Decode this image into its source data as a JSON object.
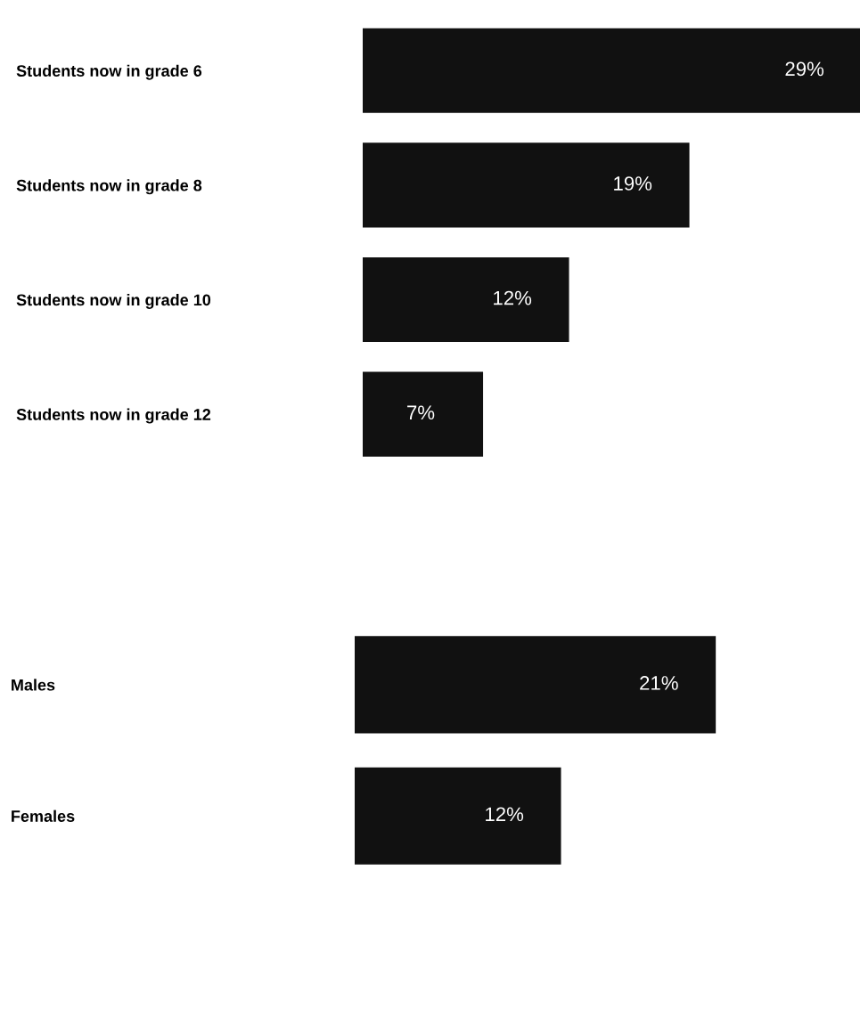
{
  "chart_data": [
    {
      "type": "bar",
      "orientation": "horizontal",
      "categories": [
        "Students now in grade 6",
        "Students now in grade 8",
        "Students now in grade 10",
        "Students now in grade 12"
      ],
      "values": [
        29,
        19,
        12,
        7
      ],
      "color": "#111111",
      "data_labels": true,
      "value_labels": [
        "29%",
        "19%",
        "12%",
        "7%"
      ],
      "grid": false,
      "legend": false,
      "tick_labels": "y"
    },
    {
      "type": "bar",
      "orientation": "horizontal",
      "categories": [
        "Males",
        "Females"
      ],
      "values": [
        21,
        12
      ],
      "color": "#111111",
      "data_labels": true,
      "value_labels": [
        "21%",
        "12%"
      ],
      "grid": false,
      "legend": false,
      "tick_labels": "y"
    }
  ]
}
